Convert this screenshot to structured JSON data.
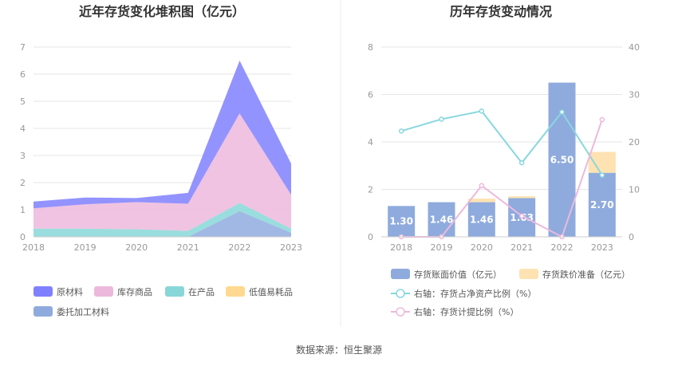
{
  "source_label": "数据来源：恒生聚源",
  "chart_data": [
    {
      "type": "area",
      "title": "近年存货变化堆积图（亿元）",
      "x": [
        "2018",
        "2019",
        "2020",
        "2021",
        "2022",
        "2023"
      ],
      "ylim": [
        0,
        7
      ],
      "yticks": [
        "0",
        "1",
        "2",
        "3",
        "4",
        "5",
        "6",
        "7"
      ],
      "stacked": true,
      "grid": true,
      "series": [
        {
          "name": "原材料",
          "color": "#8080ff",
          "values": [
            0.25,
            0.25,
            0.15,
            0.4,
            1.95,
            1.15
          ]
        },
        {
          "name": "库存商品",
          "color": "#ecb9dc",
          "values": [
            0.75,
            0.9,
            1.0,
            1.0,
            3.3,
            1.25
          ]
        },
        {
          "name": "在产品",
          "color": "#88d7d8",
          "values": [
            0.3,
            0.3,
            0.28,
            0.22,
            0.3,
            0.15
          ]
        },
        {
          "name": "低值易耗品",
          "color": "#ffd98f",
          "values": [
            0.0,
            0.0,
            0.0,
            0.0,
            0.0,
            0.0
          ]
        },
        {
          "name": "委托加工材料",
          "color": "#8fabde",
          "values": [
            0.0,
            0.0,
            0.0,
            0.0,
            0.95,
            0.15
          ]
        }
      ],
      "legend_position": "bottom"
    },
    {
      "type": "bar",
      "title": "历年存货变动情况",
      "categories": [
        "2018",
        "2019",
        "2020",
        "2021",
        "2022",
        "2023"
      ],
      "ylim": [
        0,
        8
      ],
      "yticks": [
        "0",
        "2",
        "4",
        "6",
        "8"
      ],
      "y2lim": [
        0,
        40
      ],
      "y2ticks": [
        "0",
        "10",
        "20",
        "30",
        "40"
      ],
      "series": [
        {
          "name": "存货账面价值（亿元）",
          "type": "bar",
          "color": "#8fabde",
          "values": [
            1.3,
            1.46,
            1.46,
            1.63,
            6.5,
            2.7
          ],
          "labels": [
            "1.30",
            "1.46",
            "1.46",
            "1.63",
            "6.50",
            "2.70"
          ]
        },
        {
          "name": "存货跌价准备（亿元）",
          "type": "bar",
          "color": "#ffe2b2",
          "values": [
            0.0,
            0.0,
            0.15,
            0.08,
            0.0,
            0.88
          ]
        },
        {
          "name": "右轴：存货占净资产比例（%）",
          "type": "line",
          "axis": "right",
          "color": "#88d7de",
          "values": [
            22.3,
            24.8,
            26.5,
            15.6,
            26.3,
            13.0
          ]
        },
        {
          "name": "右轴：存货计提比例（%）",
          "type": "line",
          "axis": "right",
          "color": "#ecb9dc",
          "values": [
            0.0,
            0.0,
            10.8,
            4.4,
            0.0,
            24.7
          ]
        }
      ],
      "legend_position": "bottom"
    }
  ]
}
